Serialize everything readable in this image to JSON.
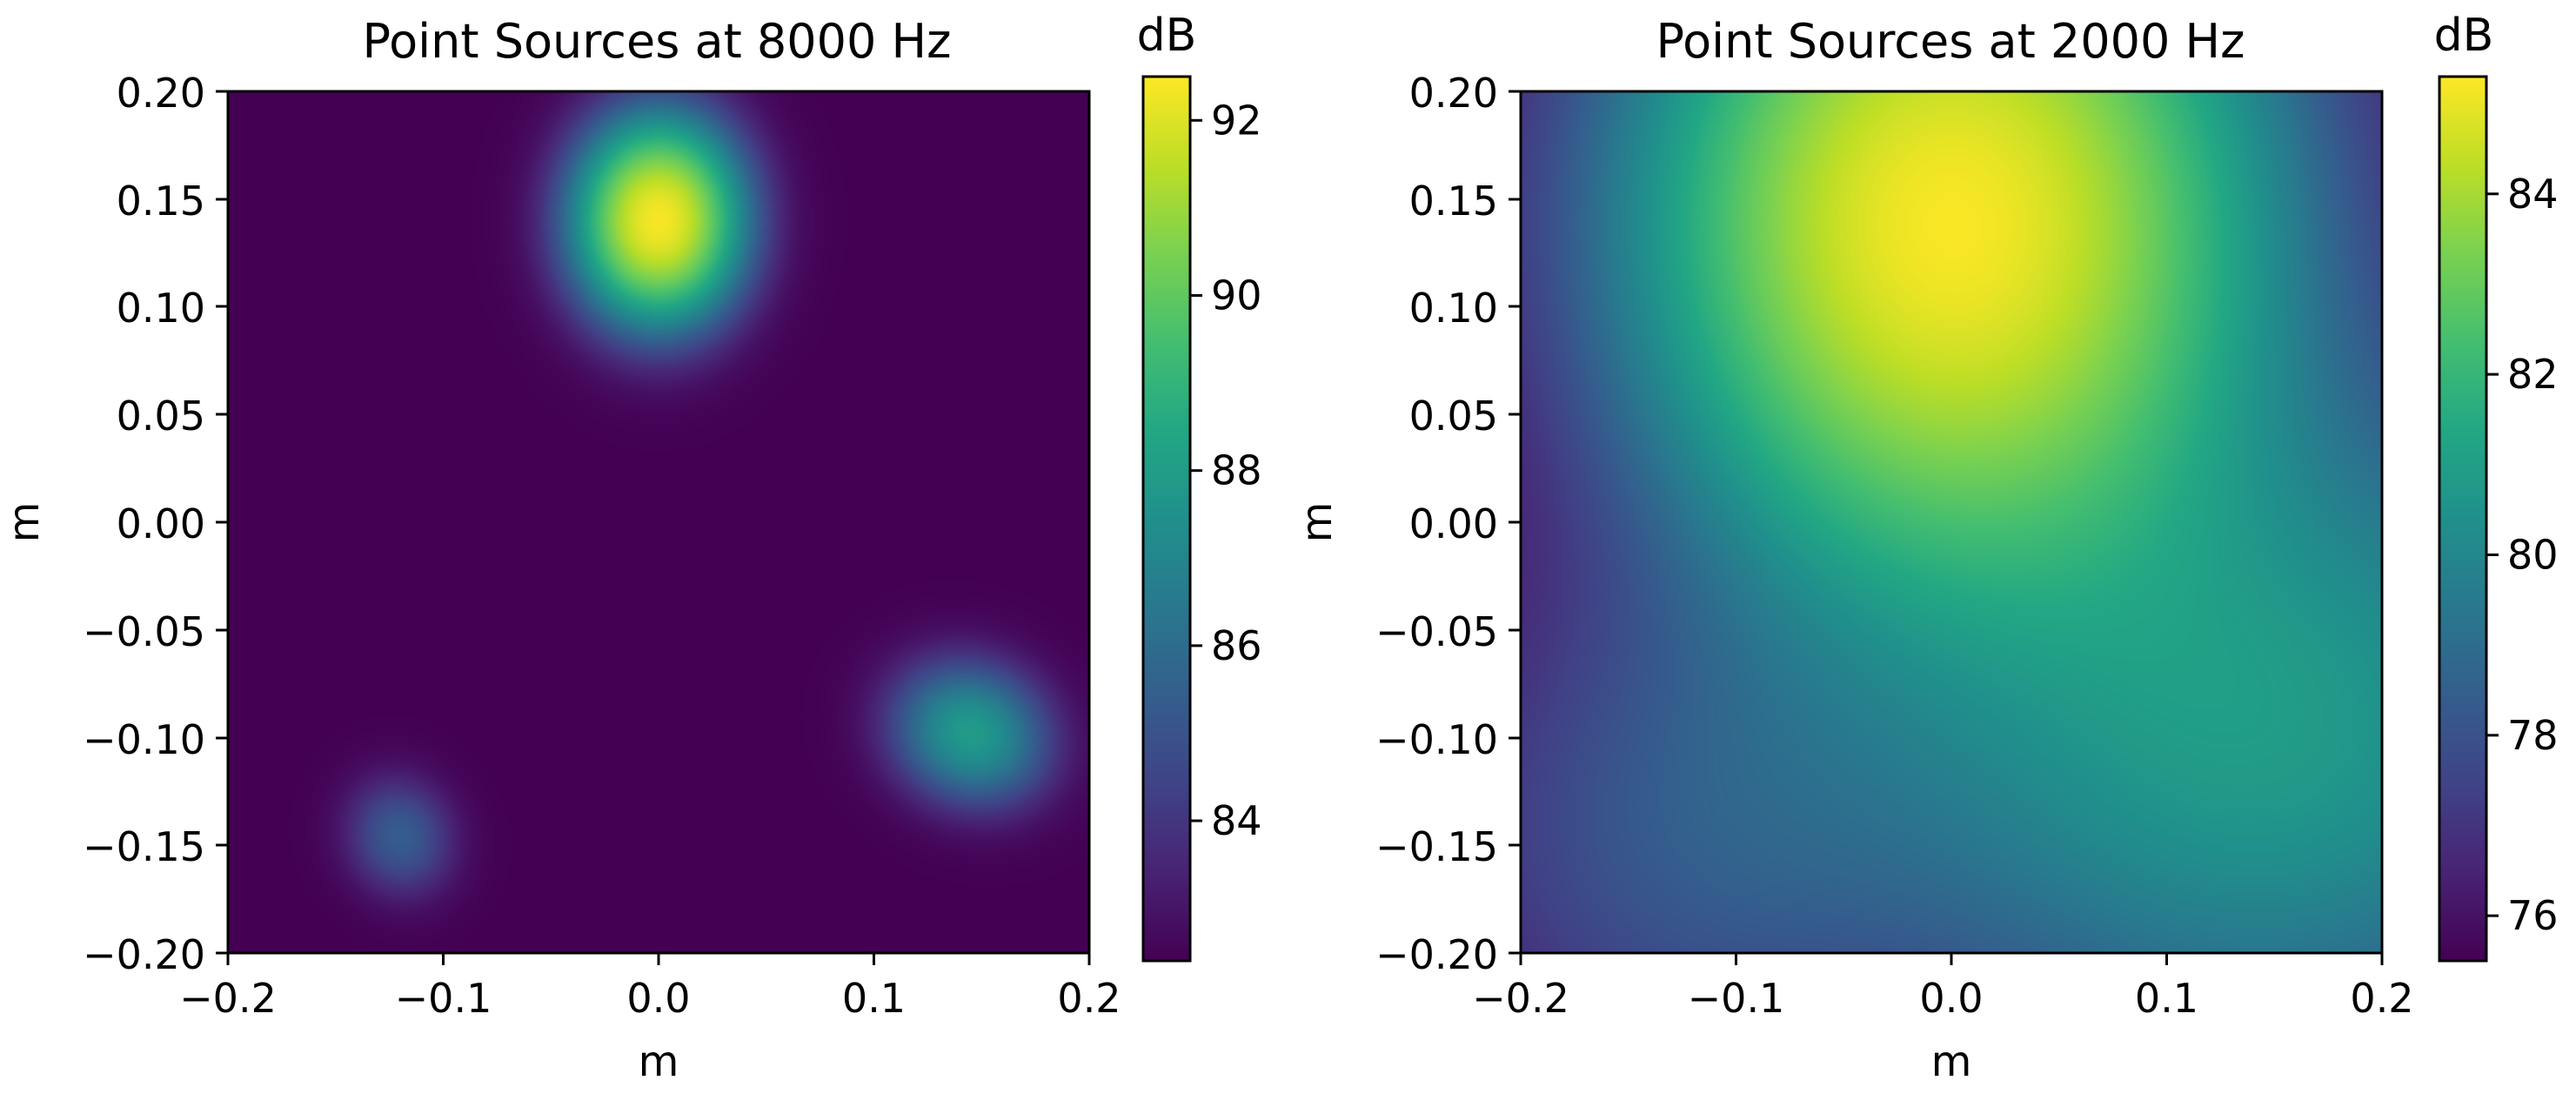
{
  "chart_data": [
    {
      "type": "heatmap",
      "title": "Point Sources at 8000 Hz",
      "xlabel": "m",
      "ylabel": "m",
      "xlim": [
        -0.2,
        0.2
      ],
      "ylim": [
        -0.2,
        0.2
      ],
      "xticks": [
        -0.2,
        -0.1,
        0.0,
        0.1,
        0.2
      ],
      "xtick_labels": [
        "−0.2",
        "−0.1",
        "0.0",
        "0.1",
        "0.2"
      ],
      "yticks": [
        0.2,
        0.15,
        0.1,
        0.05,
        0.0,
        -0.05,
        -0.1,
        -0.15,
        -0.2
      ],
      "ytick_labels": [
        "0.20",
        "0.15",
        "0.10",
        "0.05",
        "0.00",
        "−0.05",
        "−0.10",
        "−0.15",
        "−0.20"
      ],
      "grid": false,
      "colormap": "viridis",
      "colorbar": {
        "label": "dB",
        "range": [
          82.4,
          92.5
        ],
        "ticks": [
          92,
          90,
          88,
          86,
          84
        ],
        "tick_labels": [
          "92",
          "90",
          "88",
          "86",
          "84"
        ]
      },
      "background_level_db": 82.4,
      "sources": [
        {
          "x": 0.0,
          "y": 0.14,
          "peak_db": 92.4,
          "sigma_x": 0.022,
          "sigma_y": 0.027,
          "angle_deg": 0
        },
        {
          "x": 0.145,
          "y": -0.098,
          "peak_db": 87.9,
          "sigma_x": 0.022,
          "sigma_y": 0.019,
          "angle_deg": -25
        },
        {
          "x": -0.12,
          "y": -0.146,
          "peak_db": 85.4,
          "sigma_x": 0.015,
          "sigma_y": 0.017,
          "angle_deg": 20
        }
      ]
    },
    {
      "type": "heatmap",
      "title": "Point Sources at 2000 Hz",
      "xlabel": "m",
      "ylabel": "m",
      "xlim": [
        -0.2,
        0.2
      ],
      "ylim": [
        -0.2,
        0.2
      ],
      "xticks": [
        -0.2,
        -0.1,
        0.0,
        0.1,
        0.2
      ],
      "xtick_labels": [
        "−0.2",
        "−0.1",
        "0.0",
        "0.1",
        "0.2"
      ],
      "yticks": [
        0.2,
        0.15,
        0.1,
        0.05,
        0.0,
        -0.05,
        -0.1,
        -0.15,
        -0.2
      ],
      "ytick_labels": [
        "0.20",
        "0.15",
        "0.10",
        "0.05",
        "0.00",
        "−0.05",
        "−0.10",
        "−0.15",
        "−0.20"
      ],
      "grid": false,
      "colormap": "viridis",
      "colorbar": {
        "label": "dB",
        "range": [
          75.5,
          85.3
        ],
        "ticks": [
          84,
          82,
          80,
          78,
          76
        ],
        "tick_labels": [
          "84",
          "82",
          "80",
          "78",
          "76"
        ]
      },
      "background_level_db": 75.5,
      "sources": [
        {
          "x": 0.0,
          "y": 0.14,
          "peak_db": 85.2,
          "sigma_x": 0.085,
          "sigma_y": 0.1,
          "angle_deg": 0
        },
        {
          "x": 0.145,
          "y": -0.098,
          "peak_db": 80.8,
          "sigma_x": 0.12,
          "sigma_y": 0.1,
          "angle_deg": 0
        },
        {
          "x": -0.12,
          "y": -0.146,
          "peak_db": 78.0,
          "sigma_x": 0.08,
          "sigma_y": 0.08,
          "angle_deg": 0
        }
      ]
    }
  ]
}
